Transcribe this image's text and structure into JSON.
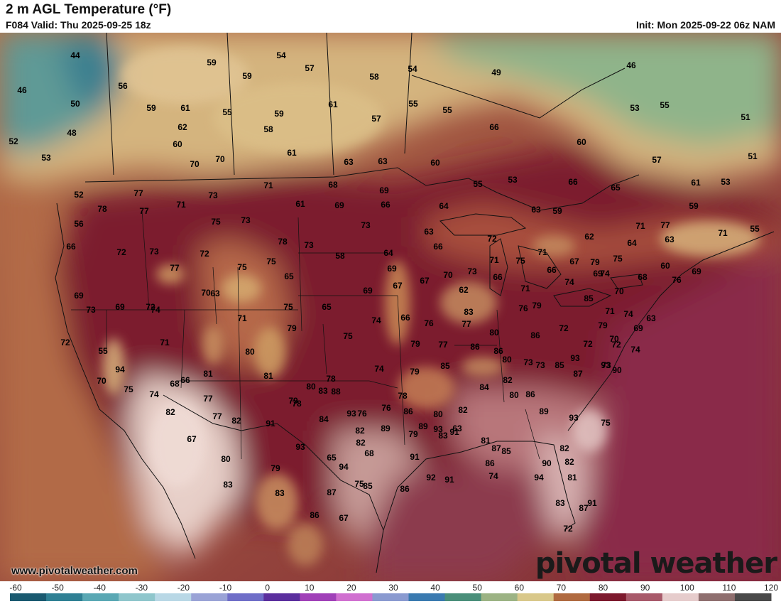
{
  "header": {
    "title": "2 m AGL Temperature (°F)",
    "valid": "F084 Valid: Thu 2025-09-25 18z",
    "init": "Init: Mon 2025-09-22 06z NAM"
  },
  "credit": {
    "url": "www.pivotalweather.com",
    "logo": "pivotal weather"
  },
  "colors": {
    "ocean": "#9c4a3d",
    "hot": "#7d1a2e",
    "warm": "#c88a55",
    "cool": "#d7c28a",
    "cold": "#6c9a8c",
    "desert": "#e8d0c8"
  },
  "legend": {
    "ticks": [
      "-60",
      "-50",
      "-40",
      "-30",
      "-20",
      "-10",
      "0",
      "10",
      "20",
      "30",
      "40",
      "50",
      "60",
      "70",
      "80",
      "90",
      "100",
      "110",
      "120"
    ],
    "colors": [
      "#1a5a70",
      "#2f8094",
      "#5aa8b4",
      "#8fc6cc",
      "#b9d8e6",
      "#9aa3d6",
      "#6f6ec8",
      "#5b2f9e",
      "#a040b8",
      "#d070d0",
      "#8a9ad0",
      "#3a7ab0",
      "#4a8f7a",
      "#9cb384",
      "#d9c88a",
      "#b06a40",
      "#7d1a2e",
      "#a85a6a",
      "#e6cccc",
      "#8f6f6f",
      "#4a4a4a"
    ]
  },
  "map_labels": [
    {
      "t": "44"
    },
    {
      "t": "46"
    },
    {
      "t": "50"
    },
    {
      "t": "48"
    },
    {
      "t": "52"
    },
    {
      "t": "53"
    },
    {
      "t": "52"
    },
    {
      "t": "56"
    },
    {
      "t": "59"
    },
    {
      "t": "61"
    },
    {
      "t": "62"
    },
    {
      "t": "60"
    },
    {
      "t": "59"
    },
    {
      "t": "54"
    },
    {
      "t": "59"
    },
    {
      "t": "57"
    },
    {
      "t": "55"
    },
    {
      "t": "59"
    },
    {
      "t": "58"
    },
    {
      "t": "58"
    },
    {
      "t": "54"
    },
    {
      "t": "49"
    },
    {
      "t": "46"
    },
    {
      "t": "61"
    },
    {
      "t": "55"
    },
    {
      "t": "55"
    },
    {
      "t": "57"
    },
    {
      "t": "53"
    },
    {
      "t": "55"
    },
    {
      "t": "51"
    },
    {
      "t": "66"
    },
    {
      "t": "60"
    },
    {
      "t": "61"
    },
    {
      "t": "63"
    },
    {
      "t": "63"
    },
    {
      "t": "60"
    },
    {
      "t": "57"
    },
    {
      "t": "51"
    },
    {
      "t": "70"
    },
    {
      "t": "70"
    },
    {
      "t": "77"
    },
    {
      "t": "78"
    },
    {
      "t": "77"
    },
    {
      "t": "71"
    },
    {
      "t": "73"
    },
    {
      "t": "71"
    },
    {
      "t": "68"
    },
    {
      "t": "69"
    },
    {
      "t": "53"
    },
    {
      "t": "66"
    },
    {
      "t": "65"
    },
    {
      "t": "61"
    },
    {
      "t": "53"
    },
    {
      "t": "56"
    },
    {
      "t": "66"
    },
    {
      "t": "72"
    },
    {
      "t": "73"
    },
    {
      "t": "72"
    },
    {
      "t": "77"
    },
    {
      "t": "75"
    },
    {
      "t": "73"
    },
    {
      "t": "61"
    },
    {
      "t": "69"
    },
    {
      "t": "66"
    },
    {
      "t": "64"
    },
    {
      "t": "55"
    },
    {
      "t": "63"
    },
    {
      "t": "59"
    },
    {
      "t": "59"
    },
    {
      "t": "55"
    },
    {
      "t": "71"
    },
    {
      "t": "77"
    },
    {
      "t": "63"
    },
    {
      "t": "71"
    },
    {
      "t": "75"
    },
    {
      "t": "75"
    },
    {
      "t": "78"
    },
    {
      "t": "73"
    },
    {
      "t": "73"
    },
    {
      "t": "58"
    },
    {
      "t": "64"
    },
    {
      "t": "63"
    },
    {
      "t": "66"
    },
    {
      "t": "72"
    },
    {
      "t": "71"
    },
    {
      "t": "75"
    },
    {
      "t": "71"
    },
    {
      "t": "66"
    },
    {
      "t": "67"
    },
    {
      "t": "62"
    },
    {
      "t": "64"
    },
    {
      "t": "60"
    },
    {
      "t": "69"
    },
    {
      "t": "68"
    },
    {
      "t": "79"
    },
    {
      "t": "74"
    },
    {
      "t": "75"
    },
    {
      "t": "69"
    },
    {
      "t": "74"
    },
    {
      "t": "63"
    },
    {
      "t": "65"
    },
    {
      "t": "69"
    },
    {
      "t": "69"
    },
    {
      "t": "67"
    },
    {
      "t": "67"
    },
    {
      "t": "70"
    },
    {
      "t": "73"
    },
    {
      "t": "66"
    },
    {
      "t": "62"
    },
    {
      "t": "71"
    },
    {
      "t": "74"
    },
    {
      "t": "69"
    },
    {
      "t": "70"
    },
    {
      "t": "76"
    },
    {
      "t": "73"
    },
    {
      "t": "69"
    },
    {
      "t": "72"
    },
    {
      "t": "70"
    },
    {
      "t": "71"
    },
    {
      "t": "75"
    },
    {
      "t": "65"
    },
    {
      "t": "74"
    },
    {
      "t": "66"
    },
    {
      "t": "76"
    },
    {
      "t": "83"
    },
    {
      "t": "76"
    },
    {
      "t": "79"
    },
    {
      "t": "85"
    },
    {
      "t": "79"
    },
    {
      "t": "71"
    },
    {
      "t": "74"
    },
    {
      "t": "69"
    },
    {
      "t": "63"
    },
    {
      "t": "72"
    },
    {
      "t": "55"
    },
    {
      "t": "75"
    },
    {
      "t": "79"
    },
    {
      "t": "77"
    },
    {
      "t": "77"
    },
    {
      "t": "80"
    },
    {
      "t": "86"
    },
    {
      "t": "86"
    },
    {
      "t": "72"
    },
    {
      "t": "93"
    },
    {
      "t": "85"
    },
    {
      "t": "72"
    },
    {
      "t": "70"
    },
    {
      "t": "72"
    },
    {
      "t": "74"
    },
    {
      "t": "73"
    },
    {
      "t": "71"
    },
    {
      "t": "68"
    },
    {
      "t": "66"
    },
    {
      "t": "81"
    },
    {
      "t": "80"
    },
    {
      "t": "79"
    },
    {
      "t": "78"
    },
    {
      "t": "74"
    },
    {
      "t": "79"
    },
    {
      "t": "85"
    },
    {
      "t": "86"
    },
    {
      "t": "80"
    },
    {
      "t": "73"
    },
    {
      "t": "73"
    },
    {
      "t": "87"
    },
    {
      "t": "93"
    },
    {
      "t": "90"
    },
    {
      "t": "94"
    },
    {
      "t": "70"
    },
    {
      "t": "75"
    },
    {
      "t": "74"
    },
    {
      "t": "77"
    },
    {
      "t": "77"
    },
    {
      "t": "82"
    },
    {
      "t": "81"
    },
    {
      "t": "79"
    },
    {
      "t": "80"
    },
    {
      "t": "83"
    },
    {
      "t": "88"
    },
    {
      "t": "93"
    },
    {
      "t": "82"
    },
    {
      "t": "76"
    },
    {
      "t": "76"
    },
    {
      "t": "78"
    },
    {
      "t": "80"
    },
    {
      "t": "82"
    },
    {
      "t": "84"
    },
    {
      "t": "82"
    },
    {
      "t": "80"
    },
    {
      "t": "86"
    },
    {
      "t": "89"
    },
    {
      "t": "93"
    },
    {
      "t": "75"
    },
    {
      "t": "67"
    },
    {
      "t": "82"
    },
    {
      "t": "78"
    },
    {
      "t": "84"
    },
    {
      "t": "82"
    },
    {
      "t": "89"
    },
    {
      "t": "86"
    },
    {
      "t": "89"
    },
    {
      "t": "93"
    },
    {
      "t": "63"
    },
    {
      "t": "81"
    },
    {
      "t": "87"
    },
    {
      "t": "85"
    },
    {
      "t": "82"
    },
    {
      "t": "82"
    },
    {
      "t": "80"
    },
    {
      "t": "91"
    },
    {
      "t": "93"
    },
    {
      "t": "65"
    },
    {
      "t": "68"
    },
    {
      "t": "79"
    },
    {
      "t": "83"
    },
    {
      "t": "91"
    },
    {
      "t": "86"
    },
    {
      "t": "90"
    },
    {
      "t": "81"
    },
    {
      "t": "79"
    },
    {
      "t": "94"
    },
    {
      "t": "85"
    },
    {
      "t": "86"
    },
    {
      "t": "92"
    },
    {
      "t": "91"
    },
    {
      "t": "91"
    },
    {
      "t": "74"
    },
    {
      "t": "94"
    },
    {
      "t": "83"
    },
    {
      "t": "83"
    },
    {
      "t": "83"
    },
    {
      "t": "87"
    },
    {
      "t": "67"
    },
    {
      "t": "75"
    },
    {
      "t": "91"
    },
    {
      "t": "72"
    },
    {
      "t": "87"
    },
    {
      "t": "86"
    }
  ]
}
